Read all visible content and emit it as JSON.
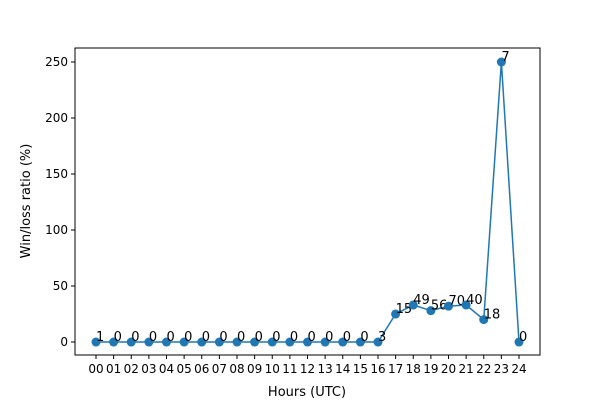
{
  "chart_data": {
    "type": "line",
    "xlabel": "Hours (UTC)",
    "ylabel": "Win/loss ratio (%)",
    "categories": [
      "00",
      "01",
      "02",
      "03",
      "04",
      "05",
      "06",
      "07",
      "08",
      "09",
      "10",
      "11",
      "12",
      "13",
      "14",
      "15",
      "16",
      "17",
      "18",
      "19",
      "20",
      "21",
      "22",
      "23",
      "24"
    ],
    "series": [
      {
        "color": "#1f77b4",
        "values": [
          0,
          0,
          0,
          0,
          0,
          0,
          0,
          0,
          0,
          0,
          0,
          0,
          0,
          0,
          0,
          0,
          0,
          25,
          33,
          28,
          32,
          33,
          20,
          250,
          0
        ],
        "annotations": [
          1,
          0,
          0,
          0,
          0,
          0,
          0,
          0,
          0,
          0,
          0,
          0,
          0,
          0,
          0,
          0,
          3,
          15,
          49,
          56,
          70,
          40,
          18,
          7,
          0
        ]
      }
    ],
    "ylim": [
      -11.6,
      262.5
    ],
    "yticks": [
      0,
      50,
      100,
      150,
      200,
      250
    ]
  }
}
